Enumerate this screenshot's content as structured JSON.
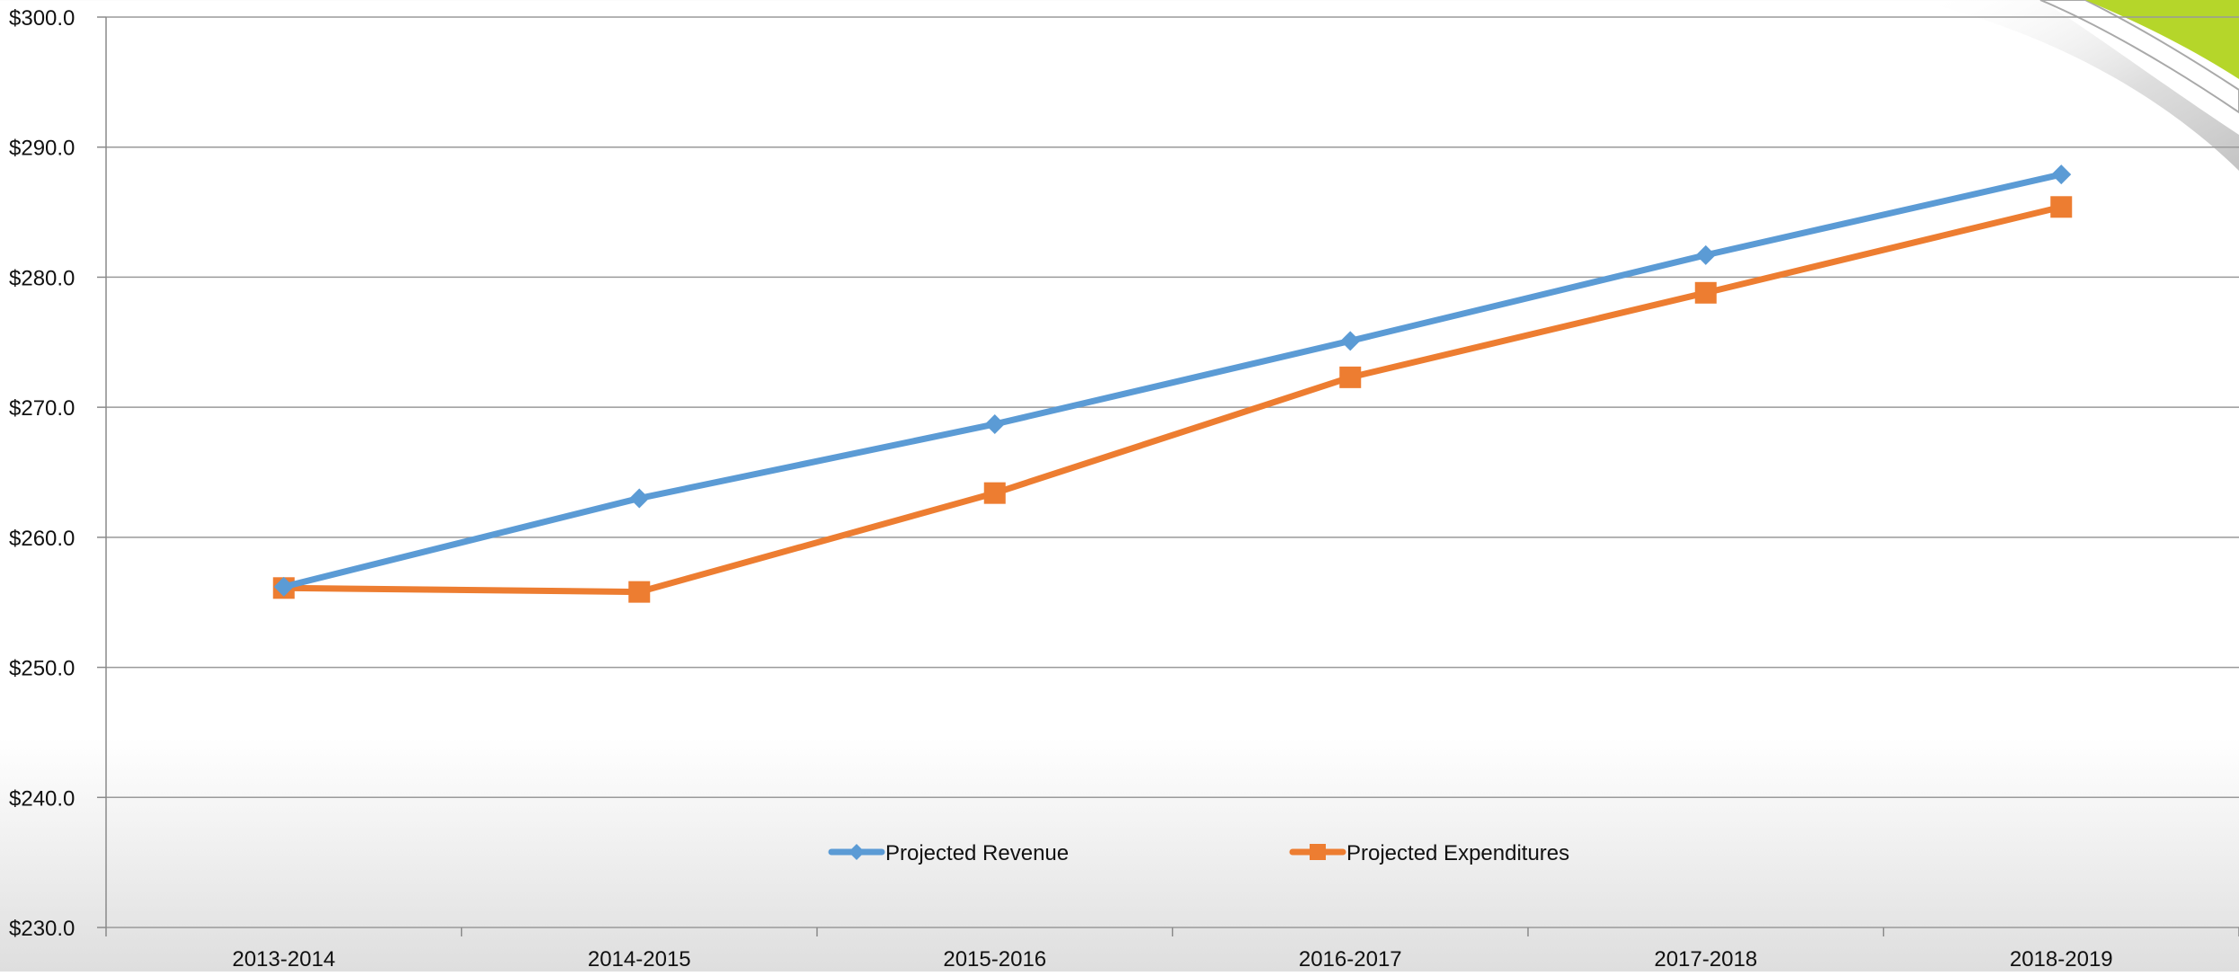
{
  "chart_data": {
    "type": "line",
    "title": "",
    "xlabel": "",
    "ylabel": "",
    "categories": [
      "2013-2014",
      "2014-2015",
      "2015-2016",
      "2016-2017",
      "2017-2018",
      "2018-2019"
    ],
    "series": [
      {
        "name": "Projected Revenue",
        "color": "#5B9BD5",
        "marker": "diamond",
        "values": [
          256.2,
          263.0,
          268.7,
          275.1,
          281.7,
          287.9
        ]
      },
      {
        "name": "Projected Expenditures",
        "color": "#ED7D31",
        "marker": "square",
        "values": [
          256.1,
          255.8,
          263.4,
          272.3,
          278.8,
          285.4
        ]
      }
    ],
    "ylim": [
      230,
      300
    ],
    "yticks": [
      230,
      240,
      250,
      260,
      270,
      280,
      290,
      300
    ],
    "ytick_labels": [
      "$230.0",
      "$240.0",
      "$250.0",
      "$260.0",
      "$270.0",
      "$280.0",
      "$290.0",
      "$300.0"
    ],
    "grid": true,
    "legend": "bottom-center",
    "decoration_colors": {
      "accent": "#B5D62A"
    }
  }
}
